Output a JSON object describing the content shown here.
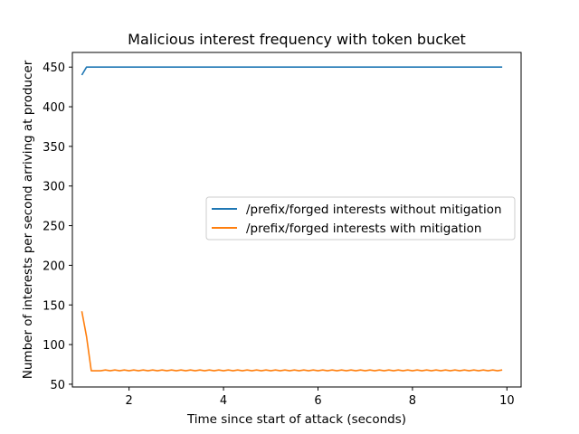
{
  "chart_data": {
    "type": "line",
    "title": "Malicious interest frequency with token bucket",
    "xlabel": "Time since start of attack (seconds)",
    "ylabel": "Number of interests per second arriving at producer",
    "xlim": [
      0.8,
      10.3
    ],
    "ylim": [
      46.5,
      468.5
    ],
    "xticks": [
      2,
      4,
      6,
      8,
      10
    ],
    "yticks": [
      50,
      100,
      150,
      200,
      250,
      300,
      350,
      400,
      450
    ],
    "grid": false,
    "legend_position": "center-right",
    "series": [
      {
        "name": "/prefix/forged interests without mitigation",
        "color": "#1f77b4",
        "x": [
          1.0,
          1.1,
          1.2,
          1.3,
          1.4,
          1.5,
          1.6,
          1.7,
          1.8,
          1.9,
          2.0,
          2.1,
          2.2,
          2.3,
          2.4,
          2.5,
          2.6,
          2.7,
          2.8,
          2.9,
          3.0,
          3.1,
          3.2,
          3.3,
          3.4,
          3.5,
          3.6,
          3.7,
          3.8,
          3.9,
          4.0,
          4.1,
          4.2,
          4.3,
          4.4,
          4.5,
          4.6,
          4.7,
          4.8,
          4.9,
          5.0,
          5.1,
          5.2,
          5.3,
          5.4,
          5.5,
          5.6,
          5.7,
          5.8,
          5.9,
          6.0,
          6.1,
          6.2,
          6.3,
          6.4,
          6.5,
          6.6,
          6.7,
          6.8,
          6.9,
          7.0,
          7.1,
          7.2,
          7.3,
          7.4,
          7.5,
          7.6,
          7.7,
          7.8,
          7.9,
          8.0,
          8.1,
          8.2,
          8.3,
          8.4,
          8.5,
          8.6,
          8.7,
          8.8,
          8.9,
          9.0,
          9.1,
          9.2,
          9.3,
          9.4,
          9.5,
          9.6,
          9.7,
          9.8,
          9.9
        ],
        "y": [
          440,
          450,
          450,
          450,
          450,
          450,
          450,
          450,
          450,
          450,
          450,
          450,
          450,
          450,
          450,
          450,
          450,
          450,
          450,
          450,
          450,
          450,
          450,
          450,
          450,
          450,
          450,
          450,
          450,
          450,
          450,
          450,
          450,
          450,
          450,
          450,
          450,
          450,
          450,
          450,
          450,
          450,
          450,
          450,
          450,
          450,
          450,
          450,
          450,
          450,
          450,
          450,
          450,
          450,
          450,
          450,
          450,
          450,
          450,
          450,
          450,
          450,
          450,
          450,
          450,
          450,
          450,
          450,
          450,
          450,
          450,
          450,
          450,
          450,
          450,
          450,
          450,
          450,
          450,
          450,
          450,
          450,
          450,
          450,
          450,
          450,
          450,
          450,
          450,
          450
        ]
      },
      {
        "name": "/prefix/forged interests with mitigation",
        "color": "#ff7f0e",
        "x": [
          1.0,
          1.1,
          1.2,
          1.3,
          1.4,
          1.5,
          1.6,
          1.7,
          1.8,
          1.9,
          2.0,
          2.1,
          2.2,
          2.3,
          2.4,
          2.5,
          2.6,
          2.7,
          2.8,
          2.9,
          3.0,
          3.1,
          3.2,
          3.3,
          3.4,
          3.5,
          3.6,
          3.7,
          3.8,
          3.9,
          4.0,
          4.1,
          4.2,
          4.3,
          4.4,
          4.5,
          4.6,
          4.7,
          4.8,
          4.9,
          5.0,
          5.1,
          5.2,
          5.3,
          5.4,
          5.5,
          5.6,
          5.7,
          5.8,
          5.9,
          6.0,
          6.1,
          6.2,
          6.3,
          6.4,
          6.5,
          6.6,
          6.7,
          6.8,
          6.9,
          7.0,
          7.1,
          7.2,
          7.3,
          7.4,
          7.5,
          7.6,
          7.7,
          7.8,
          7.9,
          8.0,
          8.1,
          8.2,
          8.3,
          8.4,
          8.5,
          8.6,
          8.7,
          8.8,
          8.9,
          9.0,
          9.1,
          9.2,
          9.3,
          9.4,
          9.5,
          9.6,
          9.7,
          9.8,
          9.9
        ],
        "y": [
          142,
          110,
          67,
          67,
          67,
          68,
          67,
          68,
          67,
          68,
          67,
          68,
          67,
          68,
          67,
          68,
          67,
          68,
          67,
          68,
          67,
          68,
          67,
          68,
          67,
          68,
          67,
          68,
          67,
          68,
          67,
          68,
          67,
          68,
          67,
          68,
          67,
          68,
          67,
          68,
          67,
          68,
          67,
          68,
          67,
          68,
          67,
          68,
          67,
          68,
          67,
          68,
          67,
          68,
          67,
          68,
          67,
          68,
          67,
          68,
          67,
          68,
          67,
          68,
          67,
          68,
          67,
          68,
          67,
          68,
          67,
          68,
          67,
          68,
          67,
          68,
          67,
          68,
          67,
          68,
          67,
          68,
          67,
          68,
          67,
          68,
          67,
          68,
          67,
          68
        ]
      }
    ]
  }
}
